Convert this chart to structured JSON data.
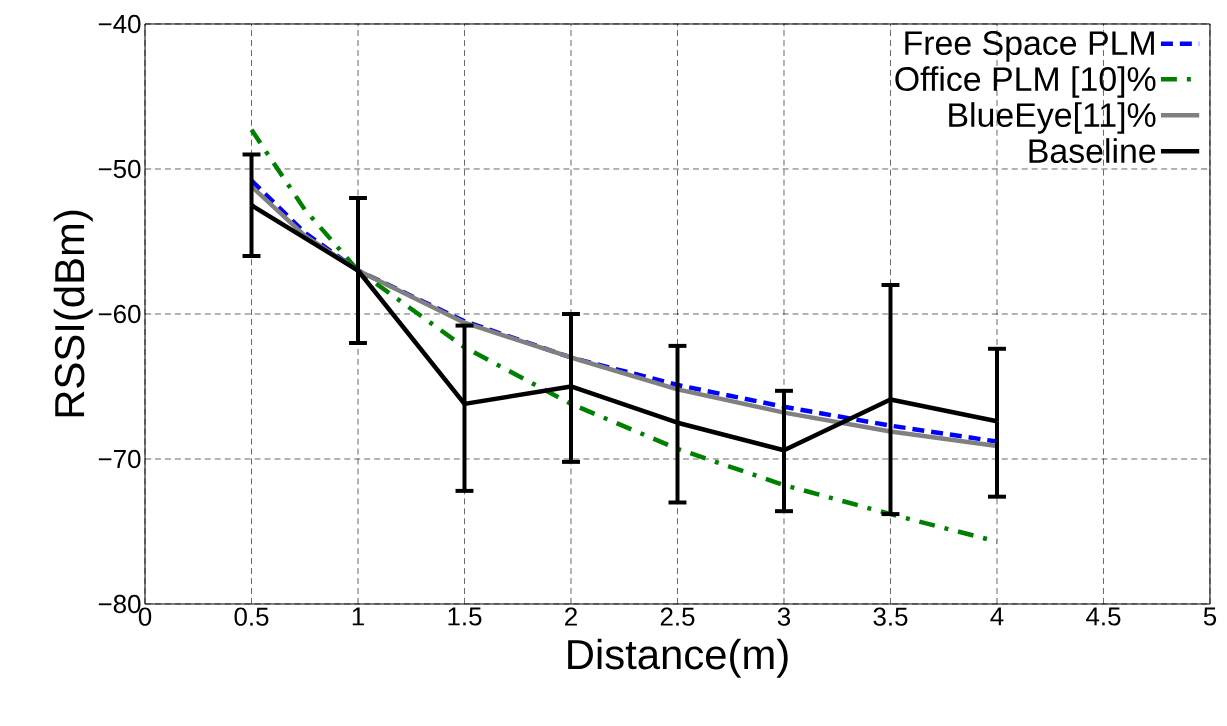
{
  "chart_data": {
    "type": "line",
    "xlabel": "Distance(m)",
    "ylabel": "RSSI(dBm)",
    "xlim": [
      0,
      5
    ],
    "ylim": [
      -80,
      -40
    ],
    "xticks": [
      0,
      0.5,
      1,
      1.5,
      2,
      2.5,
      3,
      3.5,
      4,
      4.5,
      5
    ],
    "yticks": [
      {
        "value": -80,
        "label": "−80"
      },
      {
        "value": -70,
        "label": "−70"
      },
      {
        "value": -60,
        "label": "−60"
      },
      {
        "value": -50,
        "label": "−50"
      },
      {
        "value": -40,
        "label": "−40"
      }
    ],
    "grid": true,
    "legend": "top right",
    "series": [
      {
        "name": "Free Space PLM",
        "color": "#0000ff",
        "line_style": "dashed",
        "x": [
          0.5,
          0.75,
          1,
          1.5,
          2,
          2.5,
          3,
          3.5,
          4
        ],
        "values": [
          -50.8,
          -54.4,
          -57,
          -60.5,
          -63,
          -64.9,
          -66.4,
          -67.7,
          -68.8
        ]
      },
      {
        "name": "Office PLM [10]%",
        "color": "#008000",
        "line_style": "dashdot",
        "x": [
          0.5,
          0.75,
          1,
          1.5,
          2,
          2.5,
          3,
          3.5,
          4
        ],
        "values": [
          -47.3,
          -52.8,
          -57,
          -62.3,
          -66.2,
          -69.3,
          -71.8,
          -73.8,
          -75.7
        ]
      },
      {
        "name": "BlueEye[11]%",
        "color": "#808080",
        "line_style": "solid",
        "x": [
          0.5,
          0.75,
          1,
          1.5,
          2,
          2.5,
          3,
          3.5,
          4
        ],
        "values": [
          -51.2,
          -54.6,
          -57,
          -60.6,
          -63,
          -65.2,
          -66.8,
          -68.1,
          -69.1
        ]
      },
      {
        "name": "Baseline",
        "color": "#000000",
        "line_style": "solid",
        "x": [
          0.5,
          1,
          1.5,
          2,
          2.5,
          3,
          3.5,
          4
        ],
        "values": [
          -52.5,
          -57,
          -66.2,
          -65,
          -67.5,
          -69.4,
          -65.9,
          -67.4
        ],
        "errors": [
          [
            -56,
            -49
          ],
          [
            -62,
            -52
          ],
          [
            -72.2,
            -60.8
          ],
          [
            -70.2,
            -60
          ],
          [
            -73,
            -62.2
          ],
          [
            -73.6,
            -65.3
          ],
          [
            -73.8,
            -58
          ],
          [
            -72.6,
            -62.4
          ]
        ]
      }
    ]
  }
}
